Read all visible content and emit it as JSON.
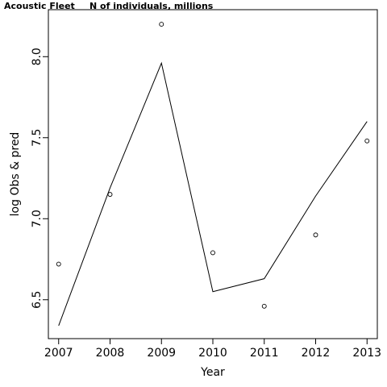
{
  "chart_data": {
    "type": "line",
    "title": "Acoustic Fleet",
    "subtitle": "N of individuals, millions",
    "xlabel": "Year",
    "ylabel": "log Obs & pred",
    "xlim": [
      2006.8,
      2013.2
    ],
    "ylim": [
      6.26,
      8.29
    ],
    "x_ticks": [
      2007,
      2008,
      2009,
      2010,
      2011,
      2012,
      2013
    ],
    "y_ticks": [
      6.5,
      7.0,
      7.5,
      8.0
    ],
    "y_tick_labels": [
      "6.5",
      "7.0",
      "7.5",
      "8.0"
    ],
    "grid": false,
    "series": [
      {
        "style": "points",
        "x": [
          2007,
          2008,
          2009,
          2010,
          2011,
          2012,
          2013
        ],
        "values": [
          6.72,
          7.15,
          8.2,
          6.79,
          6.46,
          6.9,
          7.48
        ]
      },
      {
        "style": "line",
        "x": [
          2007,
          2008,
          2009,
          2010,
          2011,
          2012,
          2013
        ],
        "values": [
          6.34,
          7.19,
          7.96,
          6.55,
          6.63,
          7.14,
          7.6
        ]
      }
    ]
  }
}
